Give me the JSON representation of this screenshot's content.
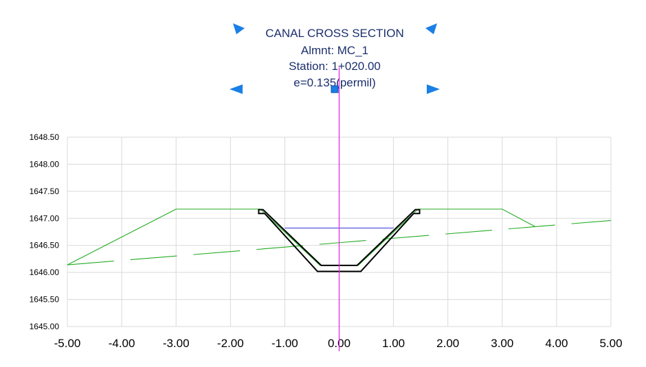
{
  "title": {
    "lines": [
      "CANAL CROSS SECTION",
      "Almnt: MC_1",
      "Station: 1+020.00",
      "e=0.135(permil)"
    ],
    "color": "#1c2f6e"
  },
  "handles": {
    "color": "#1a7fe6",
    "items": [
      "arrow-top-left-icon",
      "arrow-top-right-icon",
      "arrow-left-icon",
      "arrow-right-icon",
      "grip-square-icon"
    ]
  },
  "chart_data": {
    "type": "line",
    "xlim": [
      -5,
      5
    ],
    "ylim": [
      1645,
      1648.5
    ],
    "x_ticks": [
      "-5.00",
      "-4.00",
      "-3.00",
      "-2.00",
      "-1.00",
      "0.00",
      "1.00",
      "2.00",
      "3.00",
      "4.00",
      "5.00"
    ],
    "y_ticks": [
      "1648.50",
      "1648.00",
      "1647.50",
      "1647.00",
      "1646.50",
      "1646.00",
      "1645.50",
      "1645.00"
    ],
    "grid": true,
    "colors": {
      "design": "#22aa22",
      "ground": "#22aa22",
      "water": "#4a4adc",
      "lining": "#000000",
      "centerline": "#e020e0",
      "grid": "#d9d9d9"
    },
    "series": [
      {
        "key": "design",
        "x": [
          -5.0,
          -3.0,
          -1.45,
          -0.35,
          0.35,
          1.45,
          3.0,
          3.6
        ],
        "y": [
          1646.14,
          1647.17,
          1647.17,
          1646.13,
          1646.13,
          1647.17,
          1647.17,
          1646.85
        ]
      },
      {
        "key": "ground",
        "dash": true,
        "x": [
          -5.0,
          5.0
        ],
        "y": [
          1646.14,
          1646.96
        ]
      },
      {
        "key": "water",
        "x": [
          -1.0,
          1.0
        ],
        "y": [
          1646.82,
          1646.82
        ]
      }
    ],
    "lining_outline": {
      "x": [
        -1.48,
        -1.48,
        -1.37,
        -0.4,
        0.4,
        1.37,
        1.48,
        1.48,
        1.4,
        0.33,
        -0.33,
        -1.4
      ],
      "y": [
        1647.16,
        1647.09,
        1647.09,
        1646.02,
        1646.02,
        1647.09,
        1647.09,
        1647.16,
        1647.16,
        1646.13,
        1646.13,
        1647.16
      ]
    },
    "centerline_x": 0.0
  }
}
